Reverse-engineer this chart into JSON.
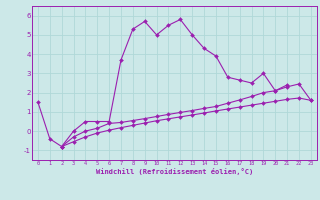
{
  "xlabel": "Windchill (Refroidissement éolien,°C)",
  "hours": [
    0,
    1,
    2,
    3,
    4,
    5,
    6,
    7,
    8,
    9,
    10,
    11,
    12,
    13,
    14,
    15,
    16,
    17,
    18,
    19,
    20,
    21,
    22,
    23
  ],
  "line1": [
    1.5,
    -0.4,
    -0.8,
    0.0,
    0.5,
    0.5,
    0.5,
    3.7,
    5.3,
    5.7,
    5.0,
    5.5,
    5.8,
    5.0,
    4.3,
    3.9,
    2.8,
    2.65,
    2.5,
    3.0,
    2.1,
    2.4,
    null,
    null
  ],
  "line2": [
    null,
    null,
    -0.8,
    -0.55,
    -0.3,
    -0.1,
    0.05,
    0.18,
    0.3,
    0.42,
    0.54,
    0.64,
    0.74,
    0.84,
    0.94,
    1.05,
    1.15,
    1.25,
    1.35,
    1.45,
    1.55,
    1.65,
    1.72,
    1.6
  ],
  "line3": [
    null,
    null,
    -0.8,
    -0.3,
    0.0,
    0.15,
    0.4,
    0.45,
    0.55,
    0.65,
    0.76,
    0.87,
    0.97,
    1.07,
    1.18,
    1.28,
    1.45,
    1.62,
    1.8,
    2.0,
    2.1,
    2.3,
    2.45,
    1.6
  ],
  "line_color": "#9b1faf",
  "bg_color": "#cce8e8",
  "grid_color": "#b0d8d8",
  "ylim": [
    -1.5,
    6.5
  ],
  "yticks": [
    -1,
    0,
    1,
    2,
    3,
    4,
    5,
    6
  ],
  "xlim": [
    -0.5,
    23.5
  ]
}
